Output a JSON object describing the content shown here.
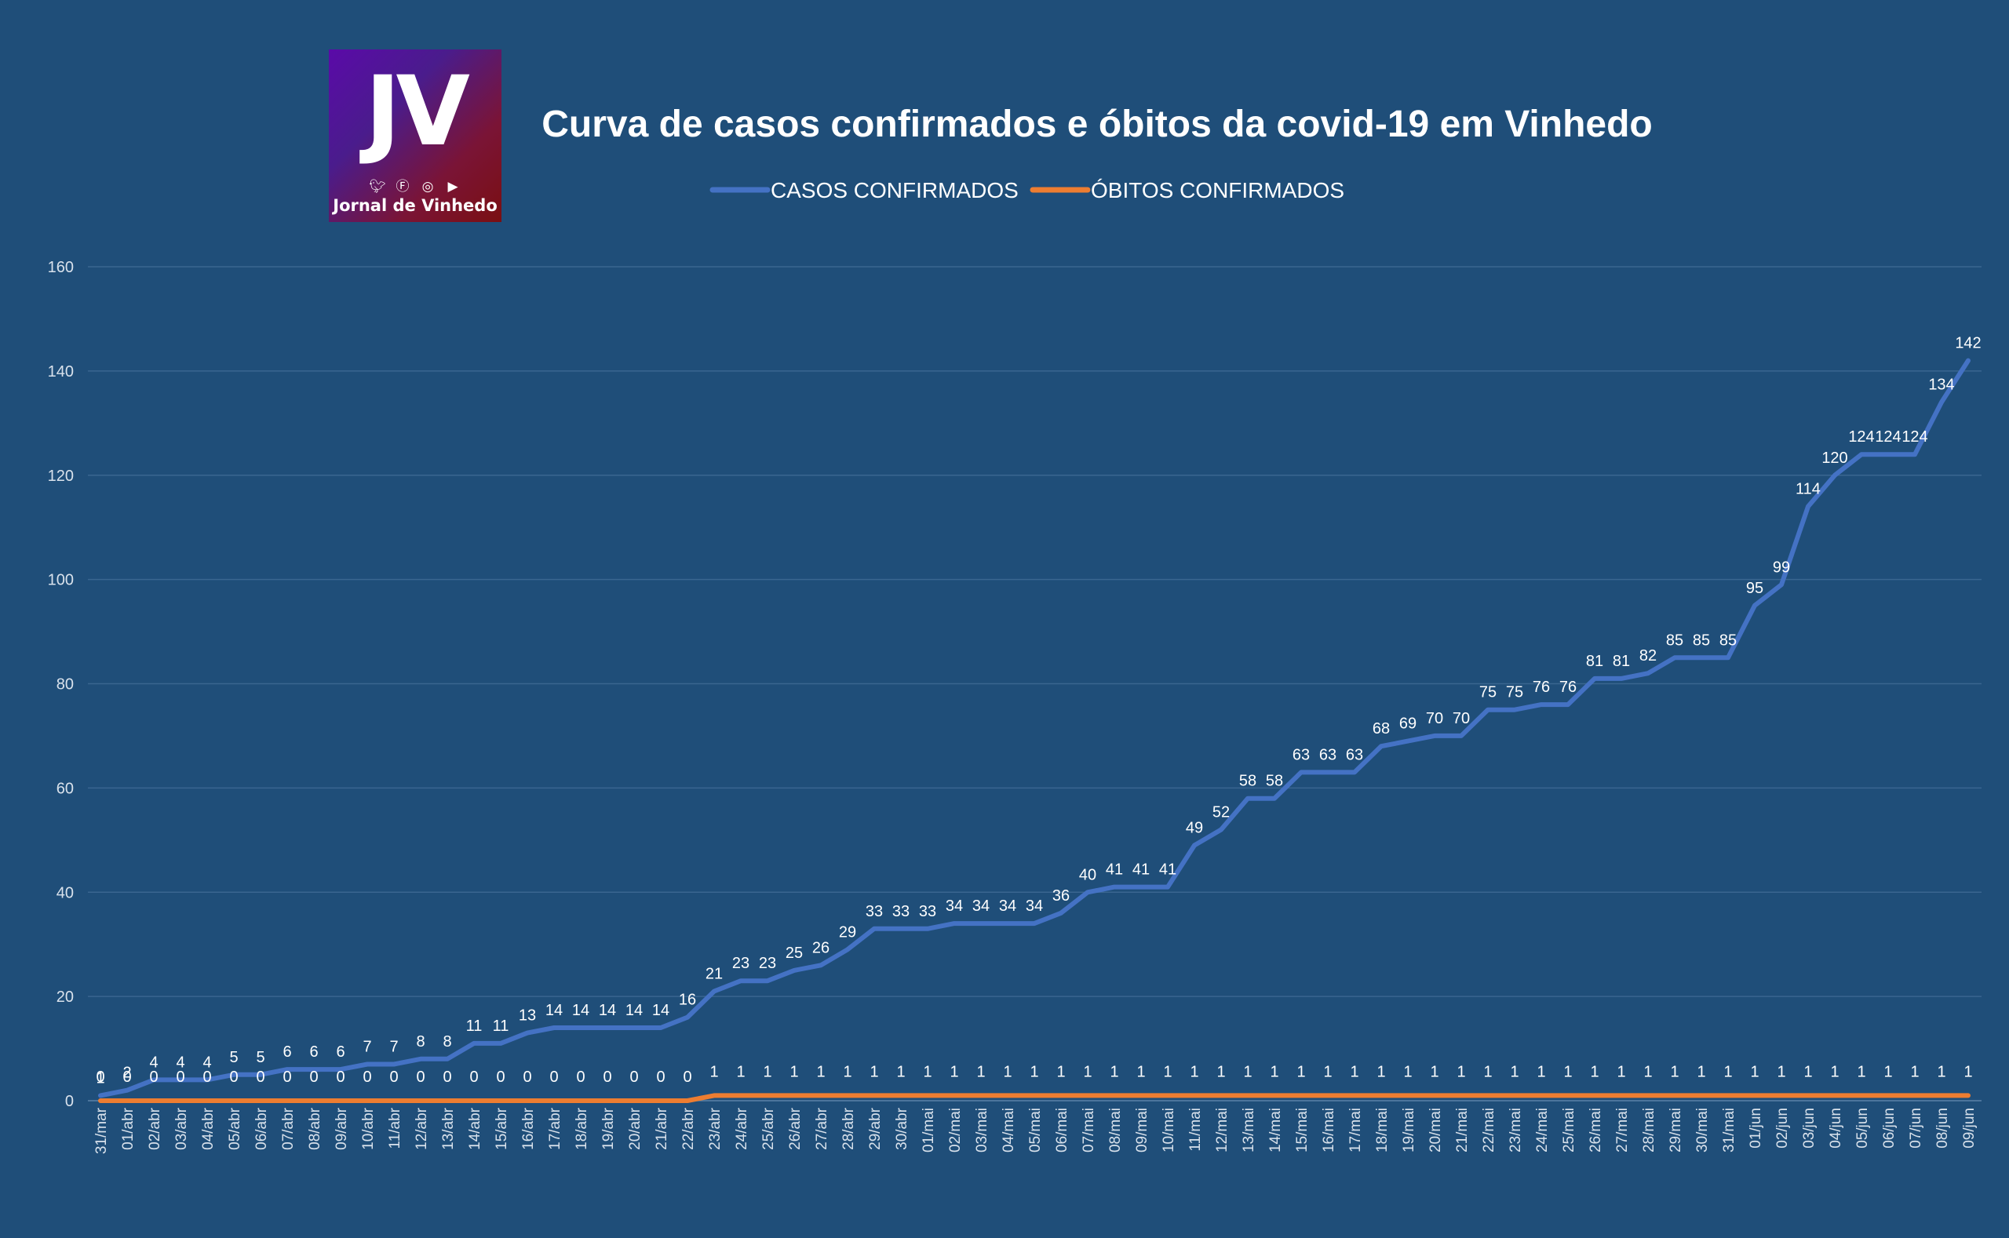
{
  "logo": {
    "mark": "JV",
    "brand": "Jornal de Vinhedo",
    "social_icons": [
      "twitter-icon",
      "facebook-icon",
      "instagram-icon",
      "youtube-icon"
    ]
  },
  "colors": {
    "background": "#1f4e79",
    "cases": "#4472c4",
    "deaths": "#ed7d31",
    "text": "#ffffff",
    "axis_text": "#d9e2ec",
    "grid": "#3a6690"
  },
  "chart_data": {
    "type": "line",
    "title": "Curva de casos confirmados e óbitos da covid-19 em Vinhedo",
    "xlabel": "",
    "ylabel": "",
    "ylim": [
      0,
      160
    ],
    "yticks": [
      0,
      20,
      40,
      60,
      80,
      100,
      120,
      140,
      160
    ],
    "grid": true,
    "legend_position": "top",
    "categories": [
      "31/mar",
      "01/abr",
      "02/abr",
      "03/abr",
      "04/abr",
      "05/abr",
      "06/abr",
      "07/abr",
      "08/abr",
      "09/abr",
      "10/abr",
      "11/abr",
      "12/abr",
      "13/abr",
      "14/abr",
      "15/abr",
      "16/abr",
      "17/abr",
      "18/abr",
      "19/abr",
      "20/abr",
      "21/abr",
      "22/abr",
      "23/abr",
      "24/abr",
      "25/abr",
      "26/abr",
      "27/abr",
      "28/abr",
      "29/abr",
      "30/abr",
      "01/mai",
      "02/mai",
      "03/mai",
      "04/mai",
      "05/mai",
      "06/mai",
      "07/mai",
      "08/mai",
      "09/mai",
      "10/mai",
      "11/mai",
      "12/mai",
      "13/mai",
      "14/mai",
      "15/mai",
      "16/mai",
      "17/mai",
      "18/mai",
      "19/mai",
      "20/mai",
      "21/mai",
      "22/mai",
      "23/mai",
      "24/mai",
      "25/mai",
      "26/mai",
      "27/mai",
      "28/mai",
      "29/mai",
      "30/mai",
      "31/mai",
      "01/jun",
      "02/jun",
      "03/jun",
      "04/jun",
      "05/jun",
      "06/jun",
      "07/jun",
      "08/jun",
      "09/jun"
    ],
    "series": [
      {
        "name": "CASOS CONFIRMADOS",
        "color": "#4472c4",
        "values": [
          1,
          2,
          4,
          4,
          4,
          5,
          5,
          6,
          6,
          6,
          7,
          7,
          8,
          8,
          11,
          11,
          13,
          14,
          14,
          14,
          14,
          14,
          16,
          21,
          23,
          23,
          25,
          26,
          29,
          33,
          33,
          33,
          34,
          34,
          34,
          34,
          36,
          40,
          41,
          41,
          41,
          49,
          52,
          58,
          58,
          63,
          63,
          63,
          68,
          69,
          70,
          70,
          75,
          75,
          76,
          76,
          81,
          81,
          82,
          85,
          85,
          85,
          95,
          99,
          114,
          120,
          124,
          124,
          124,
          134,
          142
        ]
      },
      {
        "name": "ÓBITOS CONFIRMADOS",
        "color": "#ed7d31",
        "values": [
          0,
          0,
          0,
          0,
          0,
          0,
          0,
          0,
          0,
          0,
          0,
          0,
          0,
          0,
          0,
          0,
          0,
          0,
          0,
          0,
          0,
          0,
          0,
          1,
          1,
          1,
          1,
          1,
          1,
          1,
          1,
          1,
          1,
          1,
          1,
          1,
          1,
          1,
          1,
          1,
          1,
          1,
          1,
          1,
          1,
          1,
          1,
          1,
          1,
          1,
          1,
          1,
          1,
          1,
          1,
          1,
          1,
          1,
          1,
          1,
          1,
          1,
          1,
          1,
          1,
          1,
          1,
          1,
          1,
          1,
          1
        ]
      }
    ]
  }
}
